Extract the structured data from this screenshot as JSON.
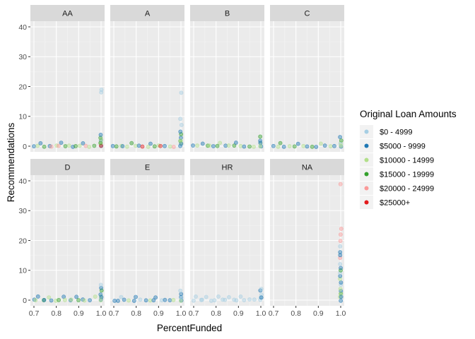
{
  "chart_data": {
    "type": "scatter",
    "facet_variable": "ProsperRating",
    "xlabel": "PercentFunded",
    "ylabel": "Recommendations",
    "xlim": [
      0.7,
      1.0
    ],
    "ylim": [
      0,
      40
    ],
    "x_ticks": [
      "0.7",
      "0.8",
      "0.9",
      "1.0"
    ],
    "y_ticks": [
      "0",
      "10",
      "20",
      "30",
      "40"
    ],
    "grid": true,
    "legend": {
      "title": "Original Loan Amounts",
      "placement": "right",
      "entries": [
        {
          "label": "$0 - 4999",
          "color": "#a6cee3"
        },
        {
          "label": "$5000 - 9999",
          "color": "#1f78b4"
        },
        {
          "label": "$10000 - 14999",
          "color": "#b2df8a"
        },
        {
          "label": "$15000 - 19999",
          "color": "#33a02c"
        },
        {
          "label": "$20000 - 24999",
          "color": "#fb9a99"
        },
        {
          "label": "$25000+",
          "color": "#e31a1c"
        }
      ]
    },
    "panels": [
      {
        "label": "AA",
        "points": [
          [
            0.7,
            0,
            1
          ],
          [
            0.72,
            0,
            2
          ],
          [
            0.73,
            1,
            1
          ],
          [
            0.75,
            0,
            3
          ],
          [
            0.77,
            0,
            1
          ],
          [
            0.78,
            0,
            4
          ],
          [
            0.8,
            0,
            2
          ],
          [
            0.81,
            0,
            4
          ],
          [
            0.82,
            1,
            1
          ],
          [
            0.84,
            0,
            3
          ],
          [
            0.86,
            0,
            2
          ],
          [
            0.87,
            0,
            1
          ],
          [
            0.89,
            0,
            3
          ],
          [
            0.9,
            0,
            2
          ],
          [
            0.92,
            1,
            1
          ],
          [
            0.93,
            0,
            4
          ],
          [
            0.95,
            0,
            2
          ],
          [
            0.97,
            0,
            3
          ],
          [
            1.0,
            0,
            1
          ],
          [
            1.0,
            1,
            2
          ],
          [
            1.0,
            2,
            1
          ],
          [
            1.0,
            3,
            3
          ],
          [
            1.0,
            4,
            1
          ],
          [
            1.0,
            0,
            5
          ],
          [
            1.0,
            18,
            0
          ],
          [
            1.0,
            19,
            0
          ],
          [
            1.0,
            1,
            3
          ],
          [
            1.0,
            2,
            2
          ]
        ]
      },
      {
        "label": "A",
        "points": [
          [
            0.7,
            0,
            1
          ],
          [
            0.71,
            0,
            3
          ],
          [
            0.73,
            0,
            2
          ],
          [
            0.74,
            0,
            1
          ],
          [
            0.76,
            0,
            2
          ],
          [
            0.78,
            1,
            3
          ],
          [
            0.8,
            0,
            2
          ],
          [
            0.81,
            0,
            1
          ],
          [
            0.83,
            0,
            5
          ],
          [
            0.85,
            0,
            2
          ],
          [
            0.86,
            1,
            1
          ],
          [
            0.88,
            0,
            3
          ],
          [
            0.9,
            0,
            2
          ],
          [
            0.91,
            0,
            5
          ],
          [
            0.93,
            0,
            1
          ],
          [
            0.95,
            0,
            2
          ],
          [
            0.97,
            0,
            4
          ],
          [
            1.0,
            0,
            1
          ],
          [
            1.0,
            1,
            2
          ],
          [
            1.0,
            2,
            3
          ],
          [
            1.0,
            3,
            1
          ],
          [
            1.0,
            4,
            3
          ],
          [
            1.0,
            5,
            1
          ],
          [
            1.0,
            7,
            0
          ],
          [
            1.0,
            9,
            0
          ],
          [
            1.0,
            18,
            0
          ],
          [
            1.0,
            1,
            1
          ],
          [
            1.0,
            2,
            2
          ]
        ]
      },
      {
        "label": "B",
        "points": [
          [
            0.7,
            0,
            1
          ],
          [
            0.72,
            0,
            2
          ],
          [
            0.74,
            1,
            1
          ],
          [
            0.76,
            0,
            3
          ],
          [
            0.77,
            0,
            2
          ],
          [
            0.79,
            0,
            1
          ],
          [
            0.81,
            0,
            3
          ],
          [
            0.82,
            1,
            2
          ],
          [
            0.84,
            0,
            1
          ],
          [
            0.86,
            0,
            2
          ],
          [
            0.88,
            0,
            3
          ],
          [
            0.89,
            1,
            1
          ],
          [
            0.91,
            0,
            2
          ],
          [
            0.93,
            0,
            1
          ],
          [
            0.95,
            0,
            3
          ],
          [
            0.97,
            0,
            2
          ],
          [
            1.0,
            0,
            1
          ],
          [
            1.0,
            1,
            2
          ],
          [
            1.0,
            2,
            1
          ],
          [
            1.0,
            3,
            3
          ],
          [
            1.0,
            1,
            1
          ],
          [
            1.0,
            0,
            2
          ]
        ]
      },
      {
        "label": "C",
        "points": [
          [
            0.7,
            0,
            1
          ],
          [
            0.72,
            0,
            2
          ],
          [
            0.73,
            1,
            3
          ],
          [
            0.75,
            0,
            1
          ],
          [
            0.77,
            0,
            2
          ],
          [
            0.79,
            0,
            3
          ],
          [
            0.81,
            1,
            1
          ],
          [
            0.83,
            0,
            2
          ],
          [
            0.85,
            0,
            1
          ],
          [
            0.87,
            0,
            3
          ],
          [
            0.89,
            0,
            1
          ],
          [
            0.91,
            1,
            2
          ],
          [
            0.93,
            0,
            1
          ],
          [
            0.95,
            0,
            2
          ],
          [
            0.97,
            0,
            1
          ],
          [
            1.0,
            0,
            1
          ],
          [
            1.0,
            1,
            2
          ],
          [
            1.0,
            2,
            3
          ],
          [
            1.0,
            3,
            1
          ],
          [
            1.0,
            1,
            0
          ],
          [
            1.0,
            0,
            2
          ]
        ]
      },
      {
        "label": "D",
        "points": [
          [
            0.7,
            0,
            1
          ],
          [
            0.71,
            0,
            2
          ],
          [
            0.72,
            1,
            1
          ],
          [
            0.74,
            0,
            3
          ],
          [
            0.75,
            0,
            1
          ],
          [
            0.77,
            1,
            2
          ],
          [
            0.78,
            0,
            1
          ],
          [
            0.8,
            0,
            2
          ],
          [
            0.81,
            0,
            3
          ],
          [
            0.83,
            1,
            1
          ],
          [
            0.84,
            0,
            2
          ],
          [
            0.86,
            0,
            1
          ],
          [
            0.87,
            0,
            2
          ],
          [
            0.89,
            1,
            1
          ],
          [
            0.9,
            0,
            3
          ],
          [
            0.92,
            0,
            1
          ],
          [
            0.93,
            0,
            2
          ],
          [
            0.95,
            0,
            1
          ],
          [
            0.97,
            1,
            2
          ],
          [
            1.0,
            0,
            1
          ],
          [
            1.0,
            1,
            2
          ],
          [
            1.0,
            2,
            1
          ],
          [
            1.0,
            3,
            3
          ],
          [
            1.0,
            4,
            1
          ],
          [
            1.0,
            5,
            0
          ],
          [
            1.0,
            1,
            1
          ],
          [
            1.0,
            0,
            2
          ]
        ]
      },
      {
        "label": "E",
        "points": [
          [
            0.7,
            0,
            1
          ],
          [
            0.72,
            0,
            1
          ],
          [
            0.73,
            1,
            0
          ],
          [
            0.75,
            0,
            1
          ],
          [
            0.77,
            0,
            2
          ],
          [
            0.79,
            0,
            1
          ],
          [
            0.8,
            1,
            1
          ],
          [
            0.82,
            0,
            0
          ],
          [
            0.84,
            0,
            1
          ],
          [
            0.86,
            0,
            2
          ],
          [
            0.88,
            0,
            1
          ],
          [
            0.89,
            1,
            1
          ],
          [
            0.91,
            0,
            0
          ],
          [
            0.93,
            0,
            1
          ],
          [
            0.95,
            0,
            1
          ],
          [
            0.97,
            0,
            2
          ],
          [
            1.0,
            0,
            1
          ],
          [
            1.0,
            1,
            1
          ],
          [
            1.0,
            2,
            1
          ],
          [
            1.0,
            3,
            0
          ],
          [
            1.0,
            0,
            2
          ],
          [
            1.0,
            1,
            0
          ]
        ]
      },
      {
        "label": "HR",
        "points": [
          [
            0.7,
            0,
            0
          ],
          [
            0.71,
            1,
            0
          ],
          [
            0.73,
            0,
            0
          ],
          [
            0.74,
            0,
            0
          ],
          [
            0.76,
            1,
            0
          ],
          [
            0.78,
            0,
            0
          ],
          [
            0.79,
            0,
            0
          ],
          [
            0.81,
            1,
            0
          ],
          [
            0.83,
            0,
            0
          ],
          [
            0.84,
            0,
            0
          ],
          [
            0.86,
            1,
            0
          ],
          [
            0.88,
            0,
            0
          ],
          [
            0.89,
            0,
            0
          ],
          [
            0.91,
            1,
            0
          ],
          [
            0.93,
            0,
            0
          ],
          [
            0.95,
            0,
            0
          ],
          [
            0.97,
            0,
            0
          ],
          [
            1.0,
            0,
            0
          ],
          [
            1.0,
            1,
            0
          ],
          [
            1.0,
            2,
            0
          ],
          [
            1.0,
            3,
            1
          ],
          [
            1.0,
            4,
            0
          ],
          [
            1.0,
            1,
            1
          ]
        ]
      },
      {
        "label": "NA",
        "points": [
          [
            1.0,
            0,
            1
          ],
          [
            1.0,
            1,
            2
          ],
          [
            1.0,
            2,
            3
          ],
          [
            1.0,
            3,
            1
          ],
          [
            1.0,
            4,
            2
          ],
          [
            1.0,
            5,
            0
          ],
          [
            1.0,
            6,
            1
          ],
          [
            1.0,
            7,
            2
          ],
          [
            1.0,
            8,
            1
          ],
          [
            1.0,
            9,
            0
          ],
          [
            1.0,
            10,
            3
          ],
          [
            1.0,
            11,
            1
          ],
          [
            1.0,
            12,
            0
          ],
          [
            1.0,
            14,
            4
          ],
          [
            1.0,
            15,
            1
          ],
          [
            1.0,
            16,
            1
          ],
          [
            1.0,
            18,
            0
          ],
          [
            1.0,
            20,
            4
          ],
          [
            1.0,
            22,
            4
          ],
          [
            1.0,
            24,
            4
          ],
          [
            1.0,
            39,
            4
          ],
          [
            1.0,
            2,
            2
          ],
          [
            1.0,
            1,
            1
          ]
        ]
      }
    ]
  }
}
